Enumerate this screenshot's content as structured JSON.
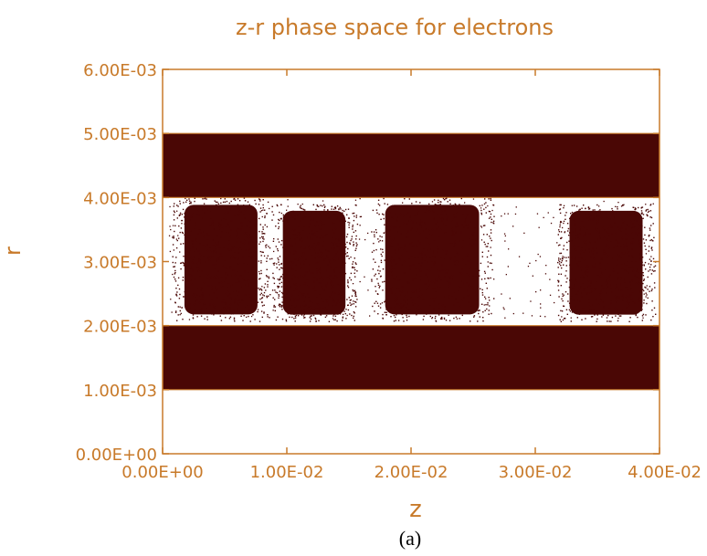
{
  "chart_data": {
    "type": "scatter",
    "title": "z-r phase space for electrons",
    "xlabel": "z",
    "ylabel": "r",
    "xlim": [
      0,
      0.04
    ],
    "ylim": [
      0,
      0.006
    ],
    "x_ticks": [
      0,
      0.01,
      0.02,
      0.03,
      0.04
    ],
    "x_tick_labels": [
      "0.00E+00",
      "1.00E-02",
      "2.00E-02",
      "3.00E-02",
      "4.00E-02"
    ],
    "y_ticks": [
      0,
      0.001,
      0.002,
      0.003,
      0.004,
      0.005,
      0.006
    ],
    "y_tick_labels": [
      "0.00E+00",
      "1.00E-03",
      "2.00E-03",
      "3.00E-03",
      "4.00E-03",
      "5.00E-03",
      "6.00E-03"
    ],
    "dense_bands": [
      {
        "z_range": [
          0,
          0.04
        ],
        "r_range": [
          0.004,
          0.005
        ]
      },
      {
        "z_range": [
          0,
          0.04
        ],
        "r_range": [
          0.001,
          0.002
        ]
      }
    ],
    "particle_bunches": [
      {
        "z_range": [
          0.0012,
          0.0082
        ],
        "r_range": [
          0.0021,
          0.004
        ]
      },
      {
        "z_range": [
          0.0092,
          0.0152
        ],
        "r_range": [
          0.0021,
          0.0039
        ]
      },
      {
        "z_range": [
          0.0172,
          0.0262
        ],
        "r_range": [
          0.0021,
          0.004
        ]
      },
      {
        "z_range": [
          0.0322,
          0.0392
        ],
        "r_range": [
          0.0021,
          0.0039
        ]
      }
    ],
    "grid": false,
    "legend": "none",
    "colors": {
      "axis": "#c87a2a",
      "points": "#4a0705"
    }
  },
  "caption": "(a)"
}
